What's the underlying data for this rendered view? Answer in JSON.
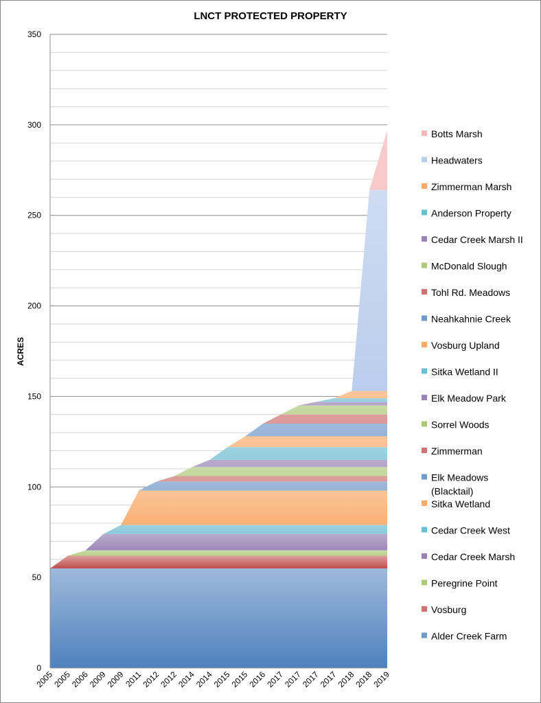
{
  "chart_data": {
    "type": "area",
    "stacked": true,
    "title": "LNCT PROTECTED PROPERTY",
    "ylabel": "ACRES",
    "xlabel": "",
    "ylim": [
      0,
      350
    ],
    "y_ticks": [
      0,
      50,
      100,
      150,
      200,
      250,
      300,
      350
    ],
    "grid": true,
    "legend_position": "right",
    "categories": [
      "2005",
      "2005",
      "2006",
      "2009",
      "2009",
      "2011",
      "2012",
      "2012",
      "2014",
      "2014",
      "2015",
      "2015",
      "2016",
      "2017",
      "2017",
      "2017",
      "2017",
      "2018",
      "2018",
      "2019"
    ],
    "series": [
      {
        "name": "Alder Creek Farm",
        "color": "#4f81bd",
        "values": [
          55,
          55,
          55,
          55,
          55,
          55,
          55,
          55,
          55,
          55,
          55,
          55,
          55,
          55,
          55,
          55,
          55,
          55,
          55,
          55
        ]
      },
      {
        "name": "Vosburg",
        "color": "#c0504d",
        "values": [
          0,
          7,
          7,
          7,
          7,
          7,
          7,
          7,
          7,
          7,
          7,
          7,
          7,
          7,
          7,
          7,
          7,
          7,
          7,
          7
        ]
      },
      {
        "name": "Peregrine Point",
        "color": "#9bbb59",
        "values": [
          0,
          0,
          3,
          3,
          3,
          3,
          3,
          3,
          3,
          3,
          3,
          3,
          3,
          3,
          3,
          3,
          3,
          3,
          3,
          3
        ]
      },
      {
        "name": "Cedar Creek Marsh",
        "color": "#8064a2",
        "values": [
          0,
          0,
          0,
          9,
          9,
          9,
          9,
          9,
          9,
          9,
          9,
          9,
          9,
          9,
          9,
          9,
          9,
          9,
          9,
          9
        ]
      },
      {
        "name": "Cedar Creek West",
        "color": "#4bacc6",
        "values": [
          0,
          0,
          0,
          0,
          5,
          5,
          5,
          5,
          5,
          5,
          5,
          5,
          5,
          5,
          5,
          5,
          5,
          5,
          5,
          5
        ]
      },
      {
        "name": "Sitka Wetland",
        "color": "#f79646",
        "values": [
          0,
          0,
          0,
          0,
          0,
          19,
          19,
          19,
          19,
          19,
          19,
          19,
          19,
          19,
          19,
          19,
          19,
          19,
          19,
          19
        ]
      },
      {
        "name": "Elk Meadows (Blacktail)",
        "color": "#4f81bd",
        "values": [
          0,
          0,
          0,
          0,
          0,
          0,
          5,
          5,
          5,
          5,
          5,
          5,
          5,
          5,
          5,
          5,
          5,
          5,
          5,
          5
        ]
      },
      {
        "name": "Zimmerman",
        "color": "#c0504d",
        "values": [
          0,
          0,
          0,
          0,
          0,
          0,
          0,
          3,
          3,
          3,
          3,
          3,
          3,
          3,
          3,
          3,
          3,
          3,
          3,
          3
        ]
      },
      {
        "name": "Sorrel Woods",
        "color": "#9bbb59",
        "values": [
          0,
          0,
          0,
          0,
          0,
          0,
          0,
          0,
          5,
          5,
          5,
          5,
          5,
          5,
          5,
          5,
          5,
          5,
          5,
          5
        ]
      },
      {
        "name": "Elk Meadow Park",
        "color": "#8064a2",
        "values": [
          0,
          0,
          0,
          0,
          0,
          0,
          0,
          0,
          0,
          4,
          4,
          4,
          4,
          4,
          4,
          4,
          4,
          4,
          4,
          4
        ]
      },
      {
        "name": "Sitka Wetland II",
        "color": "#4bacc6",
        "values": [
          0,
          0,
          0,
          0,
          0,
          0,
          0,
          0,
          0,
          0,
          7,
          7,
          7,
          7,
          7,
          7,
          7,
          7,
          7,
          7
        ]
      },
      {
        "name": "Vosburg Upland",
        "color": "#f79646",
        "values": [
          0,
          0,
          0,
          0,
          0,
          0,
          0,
          0,
          0,
          0,
          0,
          6,
          6,
          6,
          6,
          6,
          6,
          6,
          6,
          6
        ]
      },
      {
        "name": "Neahkahnie Creek",
        "color": "#4f81bd",
        "values": [
          0,
          0,
          0,
          0,
          0,
          0,
          0,
          0,
          0,
          0,
          0,
          0,
          7,
          7,
          7,
          7,
          7,
          7,
          7,
          7
        ]
      },
      {
        "name": "Tohl Rd. Meadows",
        "color": "#c0504d",
        "values": [
          0,
          0,
          0,
          0,
          0,
          0,
          0,
          0,
          0,
          0,
          0,
          0,
          0,
          5,
          5,
          5,
          5,
          5,
          5,
          5
        ]
      },
      {
        "name": "McDonald Slough",
        "color": "#9bbb59",
        "values": [
          0,
          0,
          0,
          0,
          0,
          0,
          0,
          0,
          0,
          0,
          0,
          0,
          0,
          0,
          5,
          5,
          5,
          5,
          5,
          5
        ]
      },
      {
        "name": "Cedar Creek Marsh II",
        "color": "#8064a2",
        "values": [
          0,
          0,
          0,
          0,
          0,
          0,
          0,
          0,
          0,
          0,
          0,
          0,
          0,
          0,
          0,
          2,
          2,
          2,
          2,
          2
        ]
      },
      {
        "name": "Anderson Property",
        "color": "#4bacc6",
        "values": [
          0,
          0,
          0,
          0,
          0,
          0,
          0,
          0,
          0,
          0,
          0,
          0,
          0,
          0,
          0,
          0,
          2,
          2,
          2,
          2
        ]
      },
      {
        "name": "Zimmerman Marsh",
        "color": "#f79646",
        "values": [
          0,
          0,
          0,
          0,
          0,
          0,
          0,
          0,
          0,
          0,
          0,
          0,
          0,
          0,
          0,
          0,
          0,
          4,
          4,
          4
        ]
      },
      {
        "name": "Headwaters",
        "color": "#a7c0e8",
        "values": [
          0,
          0,
          0,
          0,
          0,
          0,
          0,
          0,
          0,
          0,
          0,
          0,
          0,
          0,
          0,
          0,
          0,
          0,
          111,
          111
        ]
      },
      {
        "name": "Botts Marsh",
        "color": "#f4a6a6",
        "values": [
          0,
          0,
          0,
          0,
          0,
          0,
          0,
          0,
          0,
          0,
          0,
          0,
          0,
          0,
          0,
          0,
          0,
          0,
          0,
          33
        ]
      }
    ]
  }
}
